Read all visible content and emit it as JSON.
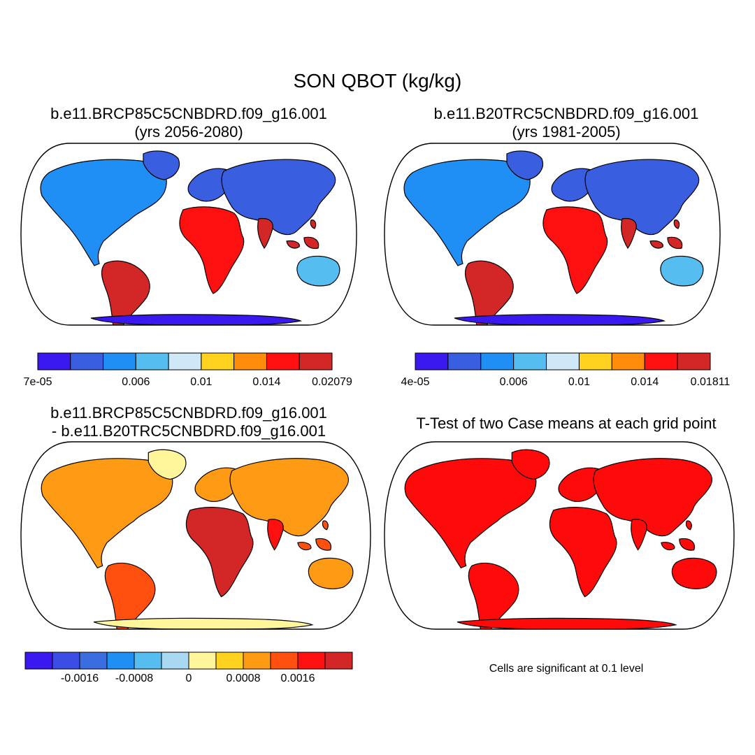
{
  "main_title": "SON QBOT (kg/kg)",
  "panels": [
    {
      "id": "case1",
      "title_lines": [
        "b.e11.BRCP85C5CNBDRD.f09_g16.001",
        "(yrs 2056-2080)"
      ],
      "colorbar": {
        "colors": [
          "#3a18f0",
          "#3a5ee0",
          "#1f8ff5",
          "#55bdf0",
          "#cfe8f8",
          "#ffd21f",
          "#ff8c0a",
          "#ff1010",
          "#d32626"
        ],
        "labels": [
          "7e-05",
          "0.006",
          "0.01",
          "0.014",
          "0.02079"
        ]
      }
    },
    {
      "id": "case2",
      "title_lines": [
        "b.e11.B20TRC5CNBDRD.f09_g16.001",
        "(yrs 1981-2005)"
      ],
      "colorbar": {
        "colors": [
          "#3a18f0",
          "#3a5ee0",
          "#1f8ff5",
          "#55bdf0",
          "#cfe8f8",
          "#ffd21f",
          "#ff8c0a",
          "#ff1010",
          "#d32626"
        ],
        "labels": [
          "4e-05",
          "0.006",
          "0.01",
          "0.014",
          "0.01811"
        ]
      }
    },
    {
      "id": "diff",
      "title_lines": [
        "b.e11.BRCP85C5CNBDRD.f09_g16.001",
        "- b.e11.B20TRC5CNBDRD.f09_g16.001"
      ],
      "colorbar": {
        "colors": [
          "#3a18f0",
          "#3a4ee6",
          "#3a6ee0",
          "#1f8ff5",
          "#55bdf0",
          "#a9d8f2",
          "#fff59a",
          "#ffd21f",
          "#ff9a14",
          "#ff5010",
          "#ff1010",
          "#d32626"
        ],
        "labels": [
          "-0.0016",
          "-0.0008",
          "0",
          "0.0008",
          "0.0016"
        ]
      }
    },
    {
      "id": "ttest",
      "title_lines": [
        "T-Test of two Case means at each grid point"
      ],
      "note": "Cells are significant at 0.1 level",
      "fill_color": "#ff0a0a"
    }
  ]
}
